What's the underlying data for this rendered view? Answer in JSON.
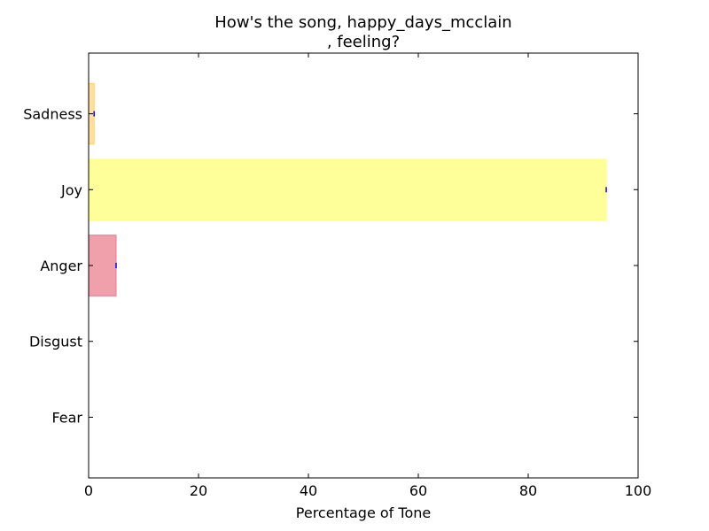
{
  "chart_data": {
    "type": "bar",
    "orientation": "horizontal",
    "title": [
      "How's the song, happy_days_mcclain",
      ", feeling?"
    ],
    "xlabel": "Percentage of Tone",
    "ylabel": "",
    "xlim": [
      0,
      100
    ],
    "xticks": [
      0,
      20,
      40,
      60,
      80,
      100
    ],
    "grid": false,
    "categories": [
      "Sadness",
      "Joy",
      "Anger",
      "Disgust",
      "Fear"
    ],
    "values": [
      1.0,
      94.2,
      5.0,
      0.0,
      0.0
    ],
    "colors": [
      "#ffe0a0",
      "#ffff99",
      "#f0a0aa",
      "#ffffff",
      "#ffffff"
    ],
    "edge_colors": [
      "#ffcf70",
      "#ffff80",
      "#e87890",
      "#ffffff",
      "#ffffff"
    ],
    "error_marker_color": "#0000ff"
  }
}
